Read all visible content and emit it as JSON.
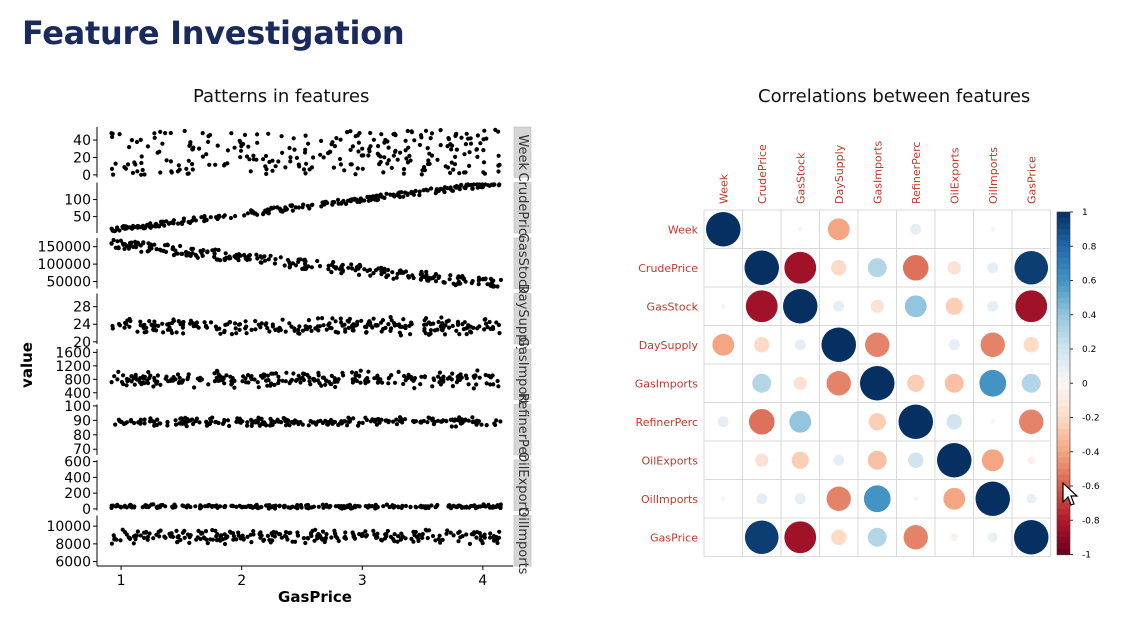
{
  "slide": {
    "title": "Feature Investigation"
  },
  "left_panel": {
    "title": "Patterns in features"
  },
  "right_panel": {
    "title": "Correlations between features"
  },
  "chart_data": [
    {
      "type": "scatter",
      "title": "Patterns in features",
      "xlabel": "GasPrice",
      "ylabel": "value",
      "x_ticks": [
        1,
        2,
        3,
        4
      ],
      "x_range": [
        0.8,
        4.25
      ],
      "facets": [
        {
          "label": "Week",
          "ticks": [
            0,
            20,
            40
          ],
          "ylim": [
            -3,
            55
          ],
          "trend": "uniform",
          "center": 26,
          "spread": 26,
          "slope": 0
        },
        {
          "label": "CrudePrice",
          "ticks": [
            50,
            100
          ],
          "ylim": [
            2,
            150
          ],
          "trend": "linear",
          "start": 10,
          "end": 150,
          "spread": 8
        },
        {
          "label": "GasStock",
          "ticks": [
            50000,
            100000,
            150000
          ],
          "ylim": [
            30000,
            175000
          ],
          "trend": "linear",
          "start": 160000,
          "end": 40000,
          "spread": 15000
        },
        {
          "label": "DaySupply",
          "ticks": [
            20,
            24,
            28
          ],
          "ylim": [
            19.5,
            31
          ],
          "trend": "flat",
          "center": 23.5,
          "spread": 2.2
        },
        {
          "label": "GasImports",
          "ticks": [
            400,
            800,
            1200,
            1600
          ],
          "ylim": [
            200,
            1700
          ],
          "trend": "flat",
          "center": 800,
          "spread": 280
        },
        {
          "label": "RefinerPerc",
          "ticks": [
            70,
            80,
            90,
            100
          ],
          "ylim": [
            66,
            101
          ],
          "trend": "flat",
          "center": 89,
          "spread": 3.5
        },
        {
          "label": "OilExports",
          "ticks": [
            0,
            200,
            400,
            600
          ],
          "ylim": [
            -20,
            620
          ],
          "trend": "flat",
          "center": 30,
          "spread": 30
        },
        {
          "label": "OilImports",
          "ticks": [
            6000,
            8000,
            10000
          ],
          "ylim": [
            5500,
            11200
          ],
          "trend": "flat",
          "center": 8800,
          "spread": 900
        }
      ]
    },
    {
      "type": "heatmap",
      "title": "Correlations between features",
      "variables": [
        "Week",
        "CrudePrice",
        "GasStock",
        "DaySupply",
        "GasImports",
        "RefinerPerc",
        "OilExports",
        "OilImports",
        "GasPrice"
      ],
      "matrix": [
        [
          1.0,
          0.0,
          -0.02,
          -0.4,
          0.0,
          0.1,
          0.0,
          -0.02,
          0.0
        ],
        [
          0.0,
          1.0,
          -0.85,
          -0.2,
          0.3,
          -0.55,
          -0.15,
          0.1,
          0.95
        ],
        [
          -0.02,
          -0.85,
          1.0,
          0.1,
          -0.15,
          0.4,
          -0.25,
          0.1,
          -0.85
        ],
        [
          -0.4,
          -0.2,
          0.1,
          1.0,
          -0.5,
          0.0,
          0.1,
          -0.5,
          -0.2
        ],
        [
          0.0,
          0.3,
          -0.15,
          -0.5,
          1.0,
          -0.25,
          -0.3,
          0.6,
          0.3
        ],
        [
          0.1,
          -0.55,
          0.4,
          0.0,
          -0.25,
          1.0,
          0.2,
          -0.02,
          -0.5
        ],
        [
          0.0,
          -0.15,
          -0.25,
          0.1,
          -0.3,
          0.2,
          1.0,
          -0.4,
          -0.05
        ],
        [
          -0.02,
          0.1,
          0.1,
          -0.5,
          0.6,
          -0.02,
          -0.4,
          1.0,
          0.08
        ],
        [
          0.0,
          0.95,
          -0.85,
          -0.2,
          0.3,
          -0.5,
          -0.05,
          0.08,
          1.0
        ]
      ],
      "colorbar_ticks": [
        1,
        0.8,
        0.6,
        0.4,
        0.2,
        0,
        -0.2,
        -0.4,
        -0.6,
        -0.8,
        -1
      ],
      "colors": {
        "positive": "#053061",
        "neutral": "#f7f7f7",
        "negative": "#67001f",
        "label": "#c0392b"
      }
    }
  ]
}
